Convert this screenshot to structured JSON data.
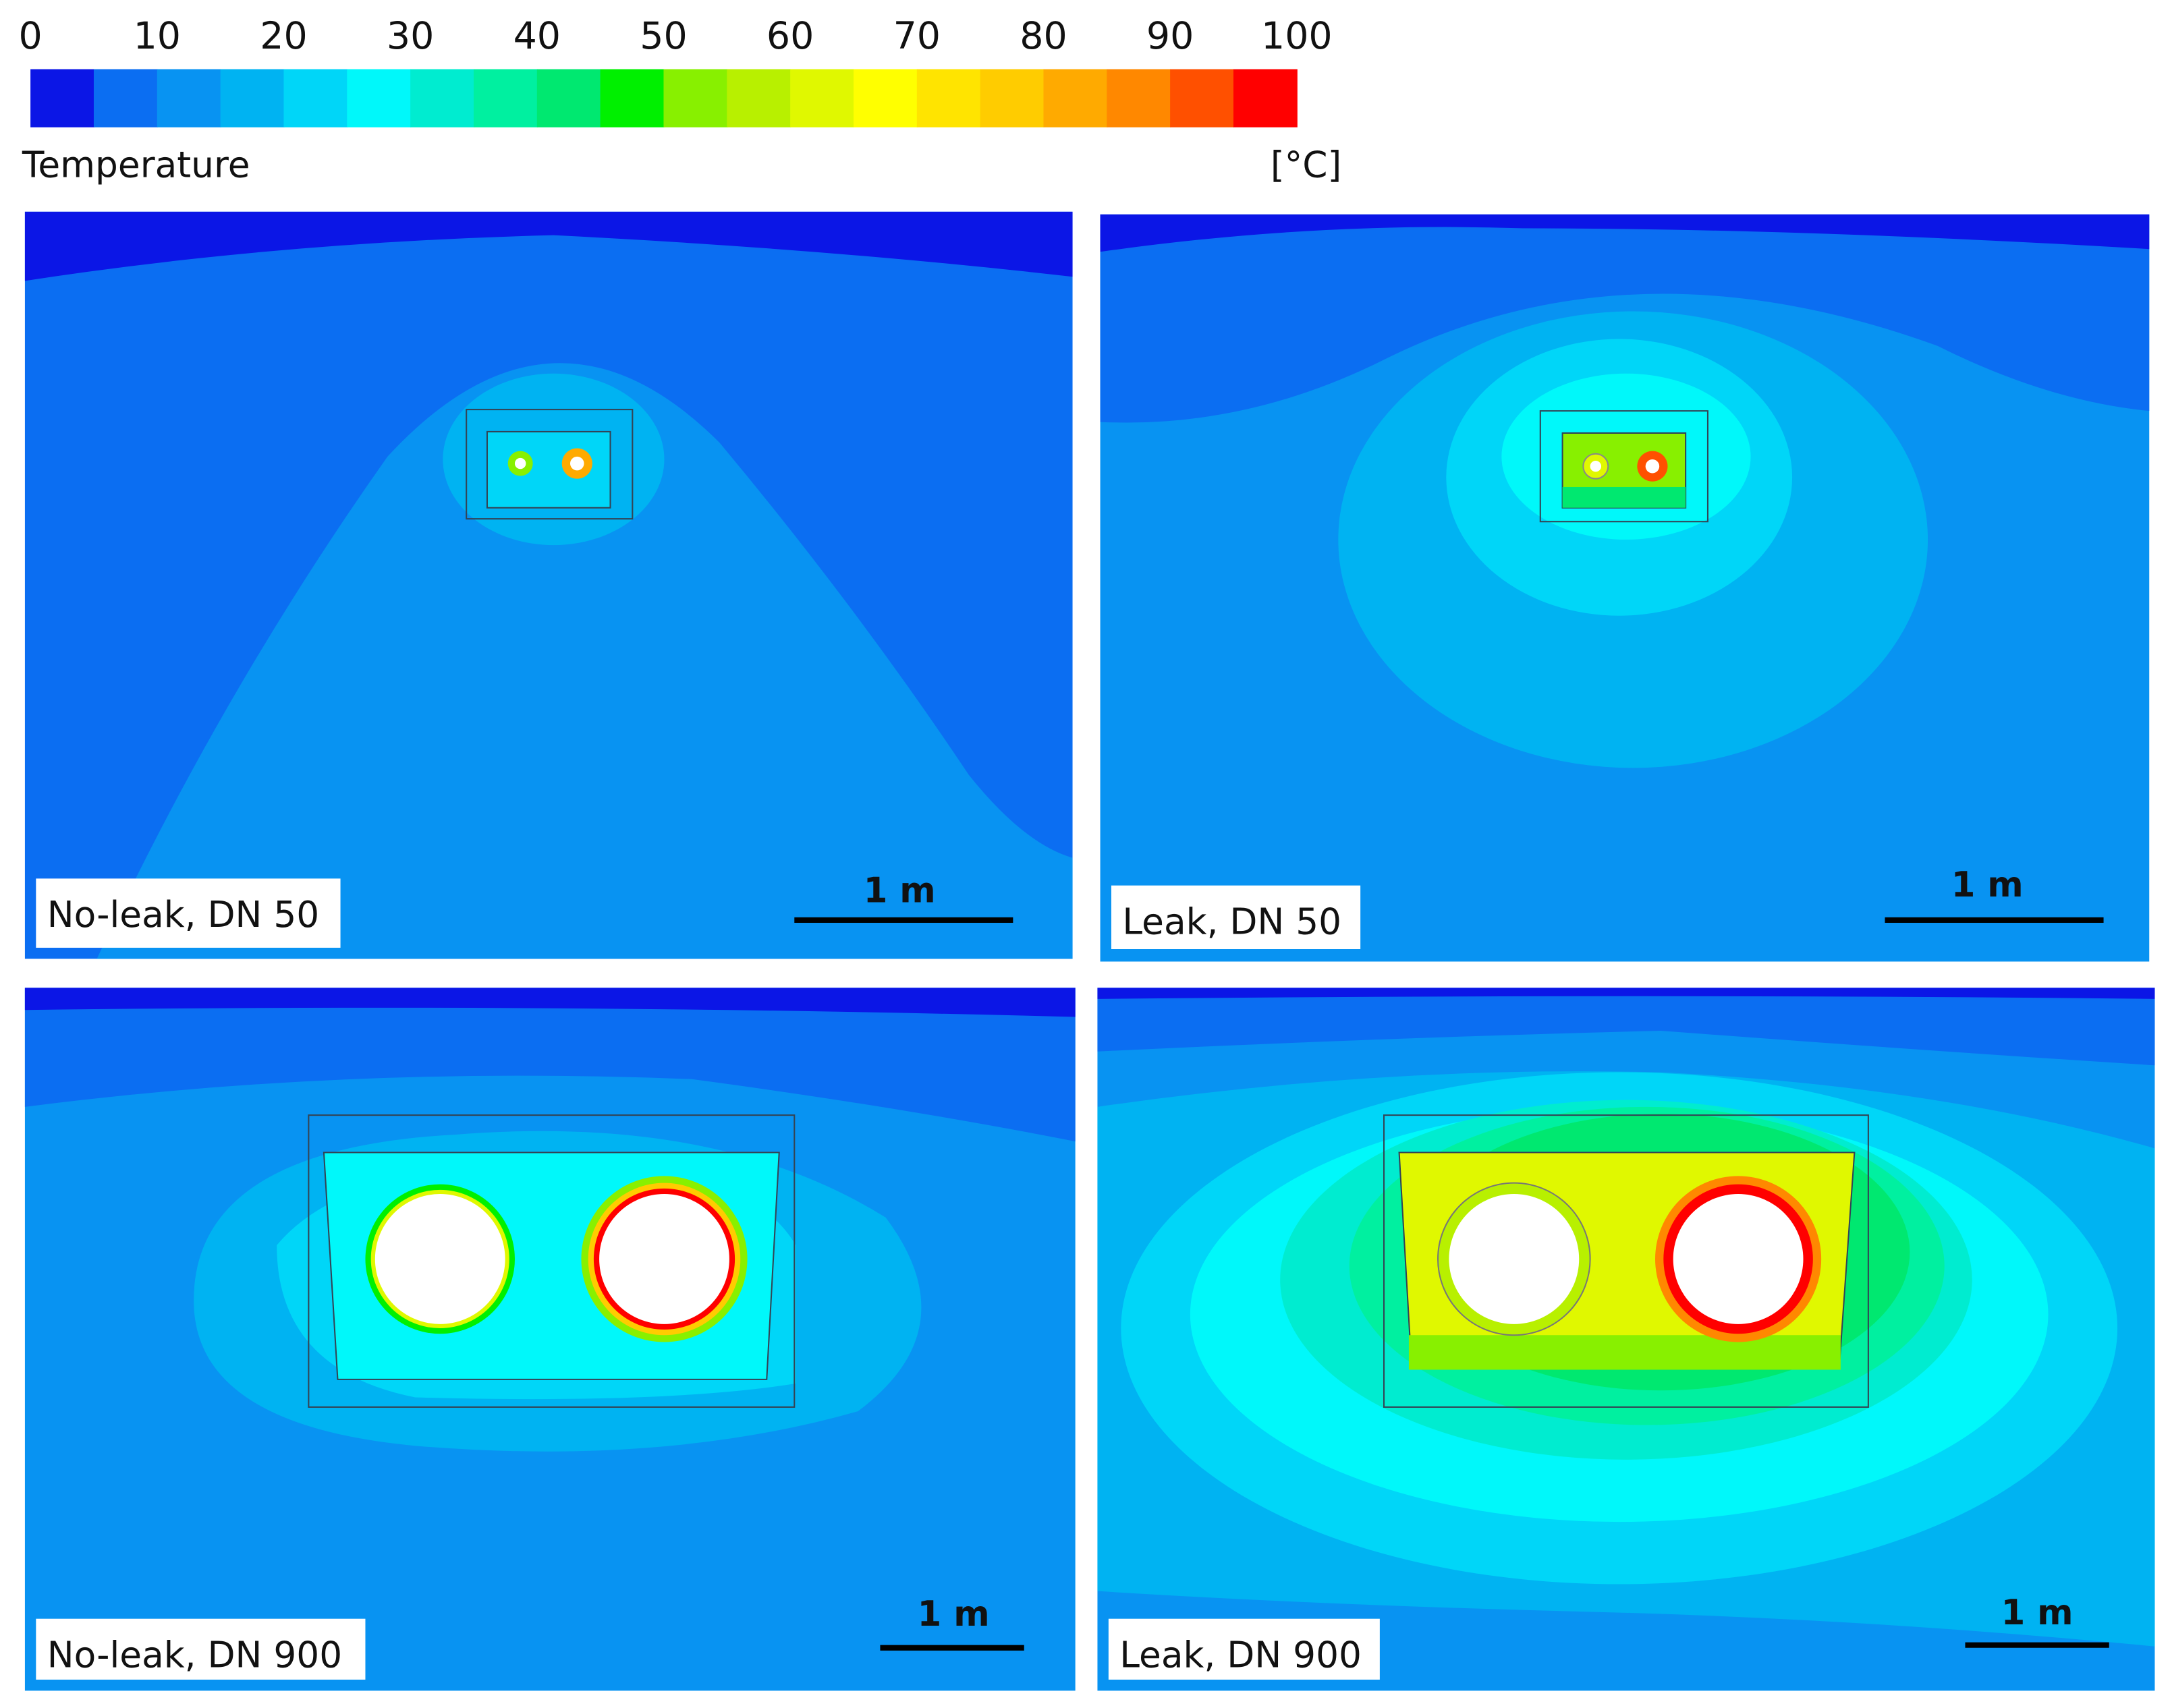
{
  "colorbar": {
    "title": "Temperature",
    "unit": "[°C]",
    "lim": [
      0,
      100
    ],
    "ticks": [
      0,
      10,
      20,
      30,
      40,
      50,
      60,
      70,
      80,
      90,
      100
    ],
    "colors": [
      "#0b16e6",
      "#0b6ef2",
      "#0893f2",
      "#00b3f2",
      "#00d6f8",
      "#00f8fa",
      "#00ecd0",
      "#00f0a0",
      "#00e870",
      "#00f000",
      "#88f000",
      "#b8f000",
      "#e0f800",
      "#ffff00",
      "#ffe400",
      "#ffcc00",
      "#ffaa00",
      "#ff8800",
      "#ff5000",
      "#ff0000"
    ]
  },
  "panels": [
    {
      "label": "No-leak, DN 50",
      "scale_bar": "1 m"
    },
    {
      "label": "Leak, DN 50",
      "scale_bar": "1 m"
    },
    {
      "label": "No-leak, DN 900",
      "scale_bar": "1 m"
    },
    {
      "label": "Leak, DN 900",
      "scale_bar": "1 m"
    }
  ]
}
